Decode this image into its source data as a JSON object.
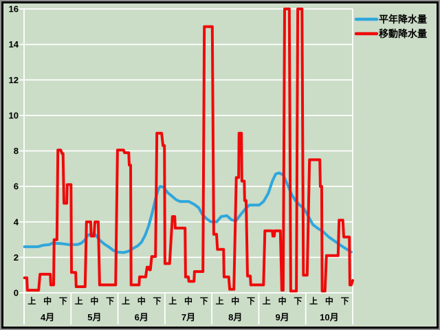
{
  "colors": {
    "background": "#cbdcc7",
    "frame_outer": "#8f8f8f",
    "frame_inner": "#000000",
    "grid": "#ffffff",
    "text": "#000000",
    "normal_line": "#2ea7dc",
    "moving_line": "#ee0a0a"
  },
  "legend": {
    "position": "top-right",
    "items": [
      {
        "label": "平年降水量",
        "series": "normal",
        "color_key": "normal_line"
      },
      {
        "label": "移動降水量",
        "series": "moving",
        "color_key": "moving_line"
      }
    ]
  },
  "chart_data": {
    "type": "line",
    "title": "",
    "xlabel": "",
    "ylabel": "",
    "grid": "horizontal white gridlines at every y tick",
    "legend_position": "top-right",
    "x_axis": {
      "months": [
        "4月",
        "5月",
        "6月",
        "7月",
        "8月",
        "9月",
        "10月"
      ],
      "period_labels": [
        "上",
        "中",
        "下"
      ],
      "domain": [
        0,
        7
      ],
      "domain_note": "x in month units; 0 = start of 4月, 7 = end of 10月; each month split into 上/中/下"
    },
    "y_axis": {
      "min": 0,
      "max": 16,
      "tick_step": 2,
      "ticks": [
        "0",
        "2",
        "4",
        "6",
        "8",
        "10",
        "12",
        "14",
        "16"
      ]
    },
    "series": [
      {
        "name": "平年降水量",
        "color_key": "normal_line",
        "points": [
          [
            0.01,
            2.6
          ],
          [
            0.29,
            2.6
          ],
          [
            0.4,
            2.68
          ],
          [
            0.54,
            2.72
          ],
          [
            0.6,
            2.8
          ],
          [
            0.78,
            2.78
          ],
          [
            0.95,
            2.72
          ],
          [
            1.13,
            2.72
          ],
          [
            1.22,
            2.8
          ],
          [
            1.3,
            3.0
          ],
          [
            1.36,
            3.25
          ],
          [
            1.43,
            3.32
          ],
          [
            1.51,
            3.3
          ],
          [
            1.61,
            2.98
          ],
          [
            1.71,
            2.75
          ],
          [
            1.8,
            2.6
          ],
          [
            1.9,
            2.4
          ],
          [
            1.98,
            2.3
          ],
          [
            2.12,
            2.27
          ],
          [
            2.23,
            2.35
          ],
          [
            2.33,
            2.52
          ],
          [
            2.42,
            2.65
          ],
          [
            2.5,
            2.85
          ],
          [
            2.58,
            3.25
          ],
          [
            2.65,
            3.75
          ],
          [
            2.72,
            4.4
          ],
          [
            2.8,
            5.3
          ],
          [
            2.86,
            5.85
          ],
          [
            2.9,
            6.0
          ],
          [
            2.97,
            5.95
          ],
          [
            3.06,
            5.65
          ],
          [
            3.15,
            5.45
          ],
          [
            3.24,
            5.25
          ],
          [
            3.32,
            5.15
          ],
          [
            3.51,
            5.15
          ],
          [
            3.63,
            4.98
          ],
          [
            3.72,
            4.8
          ],
          [
            3.79,
            4.45
          ],
          [
            3.88,
            4.2
          ],
          [
            3.97,
            4.02
          ],
          [
            4.1,
            4.0
          ],
          [
            4.2,
            4.3
          ],
          [
            4.32,
            4.35
          ],
          [
            4.42,
            4.12
          ],
          [
            4.51,
            4.05
          ],
          [
            4.61,
            4.4
          ],
          [
            4.72,
            4.75
          ],
          [
            4.8,
            4.95
          ],
          [
            5.01,
            4.95
          ],
          [
            5.1,
            5.15
          ],
          [
            5.2,
            5.6
          ],
          [
            5.29,
            6.3
          ],
          [
            5.36,
            6.7
          ],
          [
            5.43,
            6.76
          ],
          [
            5.52,
            6.65
          ],
          [
            5.61,
            6.1
          ],
          [
            5.7,
            5.55
          ],
          [
            5.78,
            5.2
          ],
          [
            5.87,
            4.95
          ],
          [
            5.96,
            4.75
          ],
          [
            6.05,
            4.35
          ],
          [
            6.15,
            3.85
          ],
          [
            6.25,
            3.65
          ],
          [
            6.37,
            3.45
          ],
          [
            6.49,
            3.15
          ],
          [
            6.6,
            2.95
          ],
          [
            6.72,
            2.72
          ],
          [
            6.82,
            2.55
          ],
          [
            6.91,
            2.4
          ],
          [
            6.97,
            2.3
          ]
        ]
      },
      {
        "name": "移動降水量",
        "color_key": "moving_line",
        "note": "peaks during 9月中/9月下 reach the top of the scale (16) and are clipped",
        "points": [
          [
            0.01,
            0.85
          ],
          [
            0.06,
            0.85
          ],
          [
            0.07,
            0.15
          ],
          [
            0.31,
            0.15
          ],
          [
            0.34,
            1.05
          ],
          [
            0.56,
            1.05
          ],
          [
            0.57,
            0.45
          ],
          [
            0.63,
            0.45
          ],
          [
            0.64,
            3.0
          ],
          [
            0.7,
            3.0
          ],
          [
            0.72,
            8.05
          ],
          [
            0.78,
            8.05
          ],
          [
            0.81,
            7.85
          ],
          [
            0.83,
            7.85
          ],
          [
            0.85,
            5.05
          ],
          [
            0.91,
            5.05
          ],
          [
            0.92,
            6.1
          ],
          [
            1.0,
            6.1
          ],
          [
            1.01,
            1.15
          ],
          [
            1.1,
            1.15
          ],
          [
            1.11,
            0.35
          ],
          [
            1.3,
            0.35
          ],
          [
            1.33,
            4.0
          ],
          [
            1.42,
            4.0
          ],
          [
            1.43,
            3.2
          ],
          [
            1.49,
            3.2
          ],
          [
            1.51,
            4.0
          ],
          [
            1.58,
            4.0
          ],
          [
            1.61,
            0.45
          ],
          [
            1.95,
            0.45
          ],
          [
            1.99,
            8.05
          ],
          [
            2.12,
            8.05
          ],
          [
            2.14,
            7.9
          ],
          [
            2.23,
            7.9
          ],
          [
            2.24,
            7.2
          ],
          [
            2.27,
            7.2
          ],
          [
            2.28,
            0.45
          ],
          [
            2.45,
            0.45
          ],
          [
            2.46,
            0.9
          ],
          [
            2.59,
            0.9
          ],
          [
            2.62,
            1.45
          ],
          [
            2.65,
            1.45
          ],
          [
            2.67,
            1.3
          ],
          [
            2.69,
            1.3
          ],
          [
            2.72,
            2.05
          ],
          [
            2.8,
            2.05
          ],
          [
            2.83,
            9.0
          ],
          [
            2.93,
            9.0
          ],
          [
            2.96,
            8.3
          ],
          [
            2.99,
            8.3
          ],
          [
            3.0,
            1.65
          ],
          [
            3.1,
            1.65
          ],
          [
            3.16,
            4.3
          ],
          [
            3.21,
            4.3
          ],
          [
            3.22,
            3.65
          ],
          [
            3.43,
            3.65
          ],
          [
            3.44,
            0.9
          ],
          [
            3.5,
            0.9
          ],
          [
            3.51,
            0.65
          ],
          [
            3.62,
            0.65
          ],
          [
            3.63,
            1.2
          ],
          [
            3.81,
            1.2
          ],
          [
            3.84,
            15.0
          ],
          [
            4.01,
            15.0
          ],
          [
            4.04,
            3.3
          ],
          [
            4.1,
            3.3
          ],
          [
            4.12,
            2.45
          ],
          [
            4.25,
            2.45
          ],
          [
            4.26,
            0.9
          ],
          [
            4.36,
            0.9
          ],
          [
            4.38,
            0.2
          ],
          [
            4.47,
            0.2
          ],
          [
            4.52,
            6.5
          ],
          [
            4.57,
            6.5
          ],
          [
            4.58,
            9.0
          ],
          [
            4.63,
            9.0
          ],
          [
            4.64,
            6.3
          ],
          [
            4.69,
            6.3
          ],
          [
            4.7,
            5.2
          ],
          [
            4.73,
            5.2
          ],
          [
            4.76,
            0.95
          ],
          [
            4.82,
            0.95
          ],
          [
            4.83,
            0.45
          ],
          [
            5.1,
            0.45
          ],
          [
            5.13,
            3.5
          ],
          [
            5.29,
            3.5
          ],
          [
            5.3,
            3.2
          ],
          [
            5.33,
            3.2
          ],
          [
            5.34,
            3.5
          ],
          [
            5.46,
            3.5
          ],
          [
            5.49,
            0.15
          ],
          [
            5.52,
            0.15
          ],
          [
            5.55,
            16.0
          ],
          [
            5.65,
            16.0
          ],
          [
            5.68,
            0.1
          ],
          [
            5.8,
            0.1
          ],
          [
            5.83,
            16.0
          ],
          [
            5.92,
            16.0
          ],
          [
            5.95,
            1.0
          ],
          [
            6.03,
            1.0
          ],
          [
            6.08,
            7.5
          ],
          [
            6.3,
            7.5
          ],
          [
            6.31,
            6.0
          ],
          [
            6.34,
            6.0
          ],
          [
            6.35,
            0.1
          ],
          [
            6.41,
            0.1
          ],
          [
            6.44,
            2.1
          ],
          [
            6.69,
            2.1
          ],
          [
            6.71,
            4.1
          ],
          [
            6.79,
            4.1
          ],
          [
            6.81,
            3.15
          ],
          [
            6.93,
            3.15
          ],
          [
            6.94,
            0.45
          ],
          [
            6.97,
            0.45
          ],
          [
            7.0,
            0.7
          ]
        ]
      }
    ]
  }
}
